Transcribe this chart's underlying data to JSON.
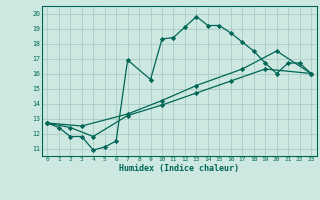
{
  "xlabel": "Humidex (Indice chaleur)",
  "background_color": "#cce8e0",
  "grid_color": "#aaccc4",
  "line_color": "#006655",
  "xlim": [
    -0.5,
    23.5
  ],
  "ylim": [
    10.5,
    20.5
  ],
  "yticks": [
    11,
    12,
    13,
    14,
    15,
    16,
    17,
    18,
    19,
    20
  ],
  "xticks": [
    0,
    1,
    2,
    3,
    4,
    5,
    6,
    7,
    8,
    9,
    10,
    11,
    12,
    13,
    14,
    15,
    16,
    17,
    18,
    19,
    20,
    21,
    22,
    23
  ],
  "line1_x": [
    0,
    1,
    2,
    3,
    4,
    5,
    6,
    7,
    9,
    10,
    11,
    12,
    13,
    14,
    15,
    16,
    17,
    18,
    19,
    20,
    21,
    22,
    23
  ],
  "line1_y": [
    12.7,
    12.4,
    11.8,
    11.8,
    10.9,
    11.1,
    11.5,
    16.9,
    15.6,
    18.3,
    18.4,
    19.1,
    19.8,
    19.2,
    19.2,
    18.7,
    18.1,
    17.5,
    16.7,
    16.0,
    16.7,
    16.7,
    16.0
  ],
  "line2_x": [
    0,
    2,
    4,
    7,
    10,
    13,
    16,
    19,
    23
  ],
  "line2_y": [
    12.7,
    12.4,
    11.8,
    13.2,
    13.9,
    14.7,
    15.5,
    16.3,
    16.0
  ],
  "line3_x": [
    0,
    3,
    7,
    10,
    13,
    17,
    20,
    23
  ],
  "line3_y": [
    12.7,
    12.5,
    13.3,
    14.2,
    15.2,
    16.3,
    17.5,
    16.0
  ]
}
